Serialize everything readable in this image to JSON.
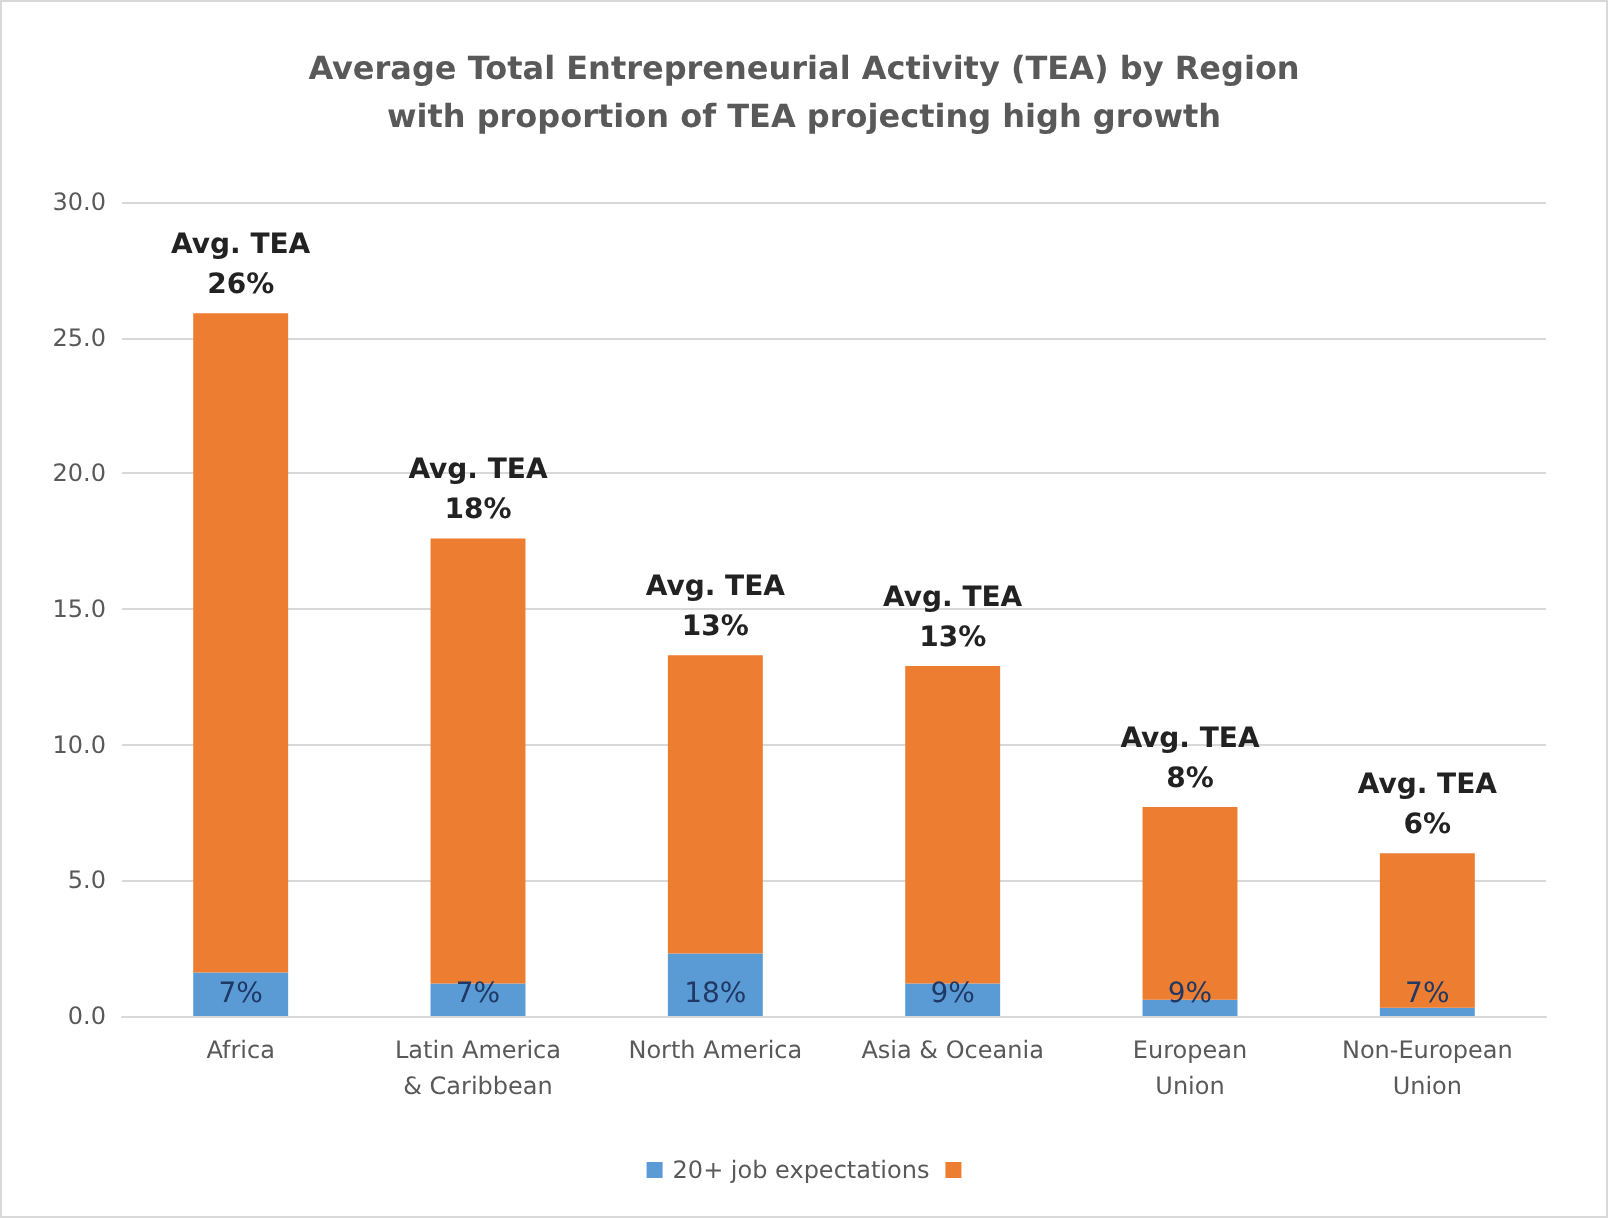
{
  "chart_data": {
    "type": "bar",
    "title": "Average Total Entrepreneurial Activity (TEA) by Region\nwith proportion of TEA projecting high growth",
    "categories": [
      "Africa",
      "Latin America\n& Caribbean",
      "North America",
      "Asia & Oceania",
      "European\nUnion",
      "Non-European\nUnion"
    ],
    "stacked": true,
    "series": [
      {
        "name": "20+ job expectations",
        "color": "#5b9bd5",
        "values": [
          1.6,
          1.2,
          2.3,
          1.2,
          0.6,
          0.3
        ]
      },
      {
        "color": "#ed7d31",
        "values": [
          24.3,
          16.4,
          11.0,
          11.7,
          7.1,
          5.7
        ]
      }
    ],
    "annotations": [
      {
        "text": "7%",
        "x": "Africa",
        "y": 0
      },
      {
        "text": "7%",
        "x": "Latin America\n& Caribbean",
        "y": 0
      },
      {
        "text": "18%",
        "x": "North America",
        "y": 0
      },
      {
        "text": "9%",
        "x": "Asia & Oceania",
        "y": 0
      },
      {
        "text": "9%",
        "x": "European\nUnion",
        "y": 0
      },
      {
        "text": "7%",
        "x": "Non-European\nUnion",
        "y": 0
      },
      {
        "text": "Avg. TEA\n26%",
        "x": "Africa",
        "y": 25.9
      },
      {
        "text": "Avg. TEA\n18%",
        "x": "Latin America\n& Caribbean",
        "y": 17.6
      },
      {
        "text": "Avg. TEA\n13%",
        "x": "North America",
        "y": 13.3
      },
      {
        "text": "Avg. TEA\n13%",
        "x": "Asia & Oceania",
        "y": 12.9
      },
      {
        "text": "Avg. TEA\n8%",
        "x": "European\nUnion",
        "y": 7.7
      },
      {
        "text": "Avg. TEA\n6%",
        "x": "Non-European\nUnion",
        "y": 6.0
      }
    ],
    "ylim": [
      0,
      30
    ],
    "yticks": [
      {
        "value": 0,
        "label": "0.0"
      },
      {
        "value": 5,
        "label": "5.0"
      },
      {
        "value": 10,
        "label": "10.0"
      },
      {
        "value": 15,
        "label": "15.0"
      },
      {
        "value": 20,
        "label": "20.0"
      },
      {
        "value": 25,
        "label": "25.0"
      },
      {
        "value": 30,
        "label": "30.0"
      }
    ],
    "grid": "y",
    "legend": "bottom"
  }
}
